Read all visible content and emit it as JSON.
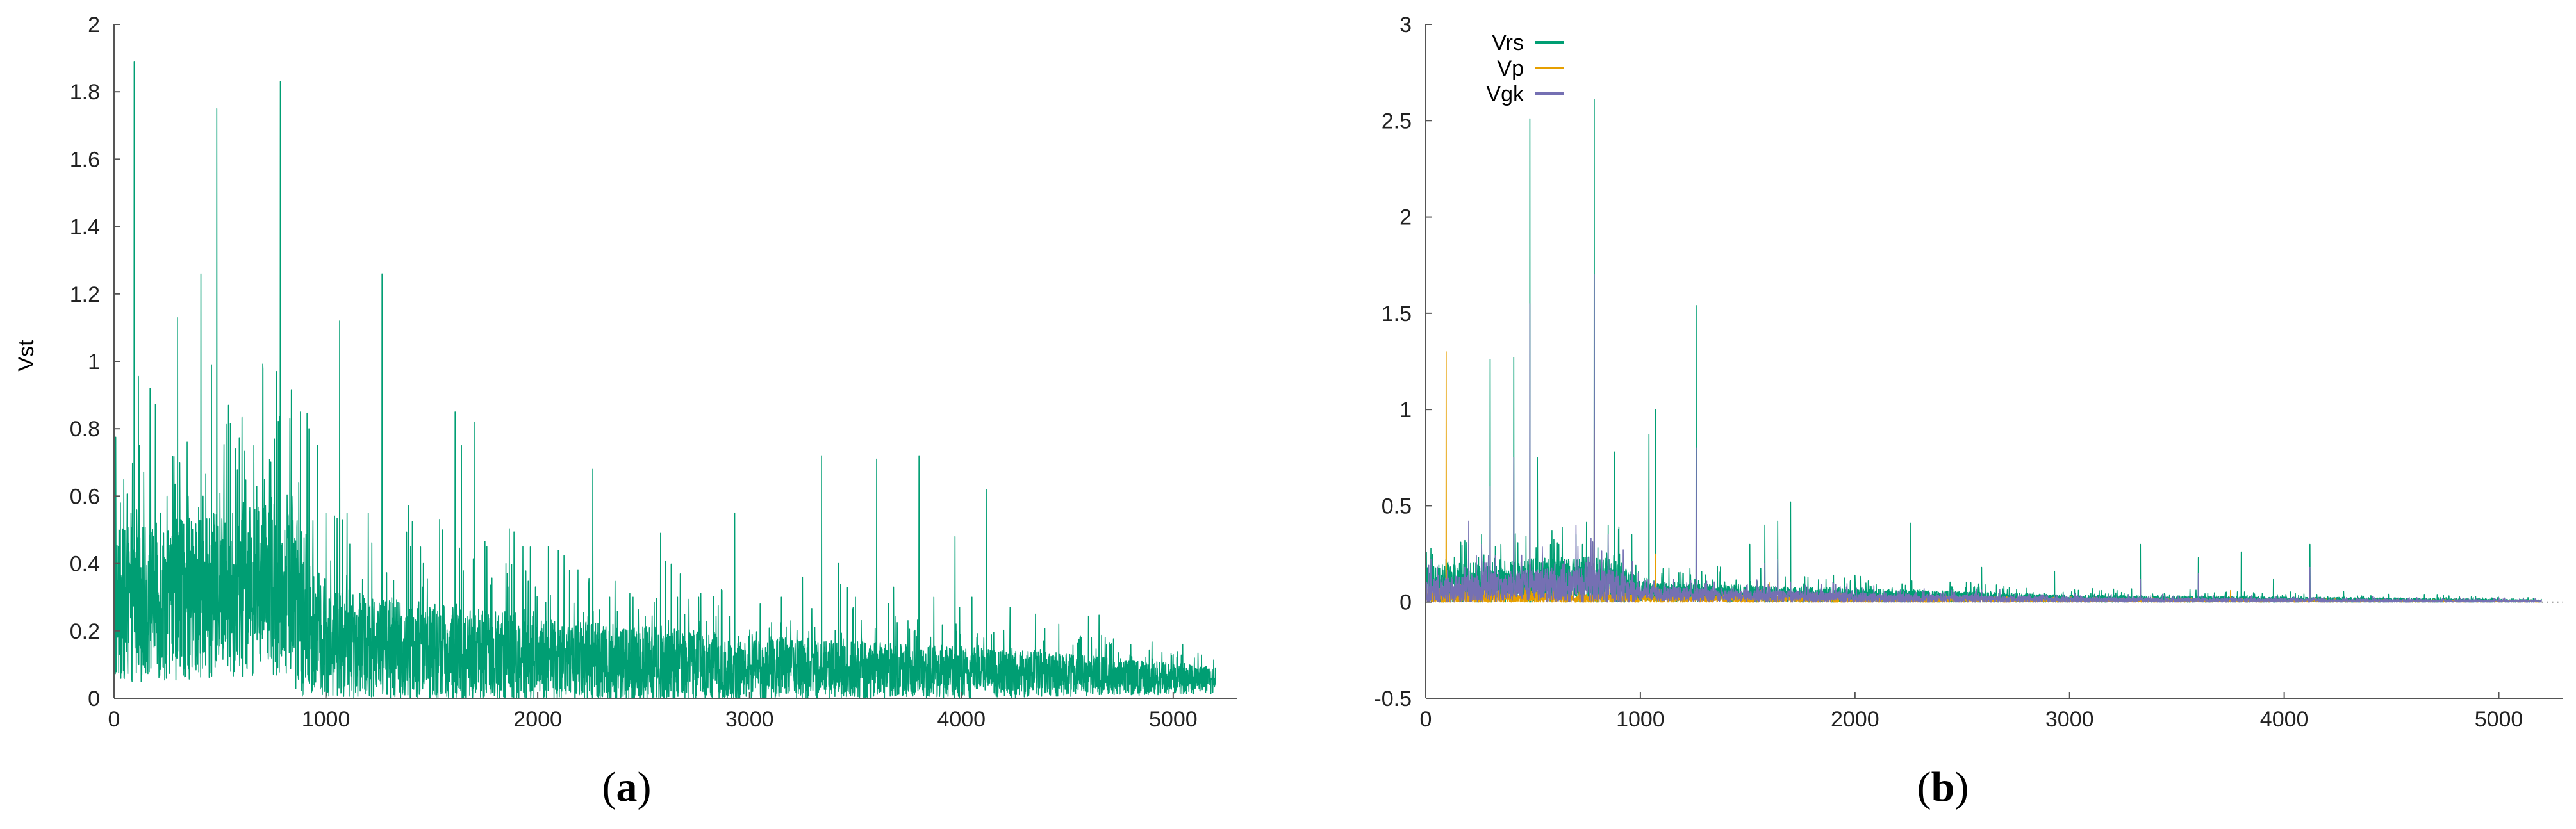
{
  "chart_data": [
    {
      "panel_label": "a",
      "type": "line",
      "ylabel": "Vst",
      "xlabel": "",
      "xlim": [
        0,
        5300
      ],
      "ylim": [
        0,
        2
      ],
      "xticks": [
        0,
        1000,
        2000,
        3000,
        4000,
        5000
      ],
      "yticks": [
        0,
        0.2,
        0.4,
        0.6,
        0.8,
        1,
        1.2,
        1.4,
        1.6,
        1.8,
        2
      ],
      "legend": null,
      "grid": false,
      "series": [
        {
          "color": "#009E73",
          "n_points": 5200,
          "baseline": [
            [
              0,
              0.25
            ],
            [
              500,
              0.28
            ],
            [
              800,
              0.3
            ],
            [
              1000,
              0.15
            ],
            [
              1500,
              0.12
            ],
            [
              2000,
              0.1
            ],
            [
              3000,
              0.08
            ],
            [
              4000,
              0.07
            ],
            [
              5200,
              0.05
            ]
          ],
          "spread": [
            [
              0,
              0.35
            ],
            [
              900,
              0.4
            ],
            [
              1000,
              0.25
            ],
            [
              2000,
              0.2
            ],
            [
              3000,
              0.15
            ],
            [
              4500,
              0.1
            ],
            [
              5200,
              0.06
            ]
          ],
          "peaks": [
            [
              30,
              0.58
            ],
            [
              80,
              0.55
            ],
            [
              120,
              0.75
            ],
            [
              170,
              0.55
            ],
            [
              220,
              0.55
            ],
            [
              250,
              0.6
            ],
            [
              300,
              0.65
            ],
            [
              310,
              0.7
            ],
            [
              350,
              0.6
            ],
            [
              420,
              0.6
            ],
            [
              470,
              0.55
            ],
            [
              560,
              0.55
            ],
            [
              610,
              0.5
            ],
            [
              660,
              0.75
            ],
            [
              710,
              0.65
            ],
            [
              740,
              0.7
            ],
            [
              840,
              0.6
            ],
            [
              880,
              0.85
            ],
            [
              920,
              0.8
            ],
            [
              960,
              0.75
            ],
            [
              1000,
              0.55
            ],
            [
              1100,
              0.55
            ],
            [
              1200,
              0.55
            ],
            [
              1320,
              0.35
            ],
            [
              1400,
              0.45
            ],
            [
              1460,
              0.4
            ],
            [
              1550,
              0.5
            ],
            [
              1610,
              0.85
            ],
            [
              1640,
              0.75
            ],
            [
              1700,
              0.82
            ],
            [
              1760,
              0.45
            ],
            [
              1850,
              0.4
            ],
            [
              1930,
              0.45
            ],
            [
              2050,
              0.45
            ],
            [
              2150,
              0.38
            ],
            [
              2260,
              0.68
            ],
            [
              2340,
              0.3
            ],
            [
              2450,
              0.3
            ],
            [
              2580,
              0.49
            ],
            [
              2660,
              0.3
            ],
            [
              2760,
              0.3
            ],
            [
              2870,
              0.32
            ],
            [
              2930,
              0.55
            ],
            [
              3050,
              0.28
            ],
            [
              3150,
              0.3
            ],
            [
              3250,
              0.36
            ],
            [
              3340,
              0.72
            ],
            [
              3420,
              0.4
            ],
            [
              3500,
              0.3
            ],
            [
              3600,
              0.71
            ],
            [
              3680,
              0.33
            ],
            [
              3800,
              0.72
            ],
            [
              3870,
              0.3
            ],
            [
              3970,
              0.48
            ],
            [
              4050,
              0.3
            ],
            [
              4120,
              0.62
            ],
            [
              4230,
              0.27
            ],
            [
              4350,
              0.25
            ],
            [
              4460,
              0.22
            ],
            [
              4560,
              0.18
            ],
            [
              4700,
              0.15
            ],
            [
              4800,
              0.16
            ],
            [
              4900,
              0.14
            ],
            [
              5000,
              0.13
            ],
            [
              5100,
              0.12
            ],
            [
              5200,
              0.11
            ]
          ],
          "spikes": [
            [
              95,
              1.89
            ],
            [
              170,
              0.92
            ],
            [
              300,
              1.13
            ],
            [
              410,
              1.26
            ],
            [
              460,
              0.99
            ],
            [
              485,
              1.75
            ],
            [
              540,
              0.87
            ],
            [
              785,
              1.83
            ],
            [
              830,
              0.83
            ],
            [
              1065,
              1.12
            ],
            [
              1265,
              1.26
            ]
          ]
        }
      ]
    },
    {
      "panel_label": "b",
      "type": "line",
      "ylabel": "",
      "xlabel": "",
      "xlim": [
        0,
        5300
      ],
      "ylim": [
        -0.5,
        3
      ],
      "xticks": [
        0,
        1000,
        2000,
        3000,
        4000,
        5000
      ],
      "yticks": [
        -0.5,
        0,
        0.5,
        1,
        1.5,
        2,
        2.5,
        3
      ],
      "legend": "top-left",
      "grid": false,
      "series": [
        {
          "name": "Vrs",
          "color": "#009E73",
          "n_points": 5200,
          "baseline": [
            [
              0,
              0.08
            ],
            [
              500,
              0.1
            ],
            [
              800,
              0.1
            ],
            [
              1000,
              0.05
            ],
            [
              1500,
              0.04
            ],
            [
              2000,
              0.03
            ],
            [
              3000,
              0.015
            ],
            [
              4000,
              0.01
            ],
            [
              5200,
              0.005
            ]
          ],
          "spread": [
            [
              0,
              0.15
            ],
            [
              900,
              0.2
            ],
            [
              1000,
              0.08
            ],
            [
              2000,
              0.06
            ],
            [
              3000,
              0.03
            ],
            [
              4500,
              0.02
            ],
            [
              5200,
              0.01
            ]
          ],
          "peaks": [
            [
              100,
              0.2
            ],
            [
              200,
              0.3
            ],
            [
              260,
              0.35
            ],
            [
              350,
              0.3
            ],
            [
              560,
              0.2
            ],
            [
              620,
              0.3
            ],
            [
              700,
              0.35
            ],
            [
              850,
              0.4
            ],
            [
              900,
              0.3
            ],
            [
              960,
              0.35
            ],
            [
              1100,
              0.15
            ],
            [
              1200,
              0.15
            ],
            [
              1510,
              0.3
            ],
            [
              1580,
              0.4
            ],
            [
              1640,
              0.42
            ],
            [
              1700,
              0.52
            ],
            [
              1900,
              0.14
            ],
            [
              2000,
              0.14
            ],
            [
              2540,
              0.1
            ],
            [
              2590,
              0.18
            ],
            [
              2930,
              0.16
            ],
            [
              3150,
              0.06
            ],
            [
              3330,
              0.3
            ],
            [
              3600,
              0.23
            ],
            [
              3800,
              0.26
            ],
            [
              3950,
              0.12
            ],
            [
              4120,
              0.3
            ]
          ],
          "spikes": [
            [
              300,
              1.26
            ],
            [
              410,
              1.27
            ],
            [
              485,
              2.51
            ],
            [
              520,
              0.75
            ],
            [
              785,
              2.61
            ],
            [
              880,
              0.78
            ],
            [
              1040,
              0.87
            ],
            [
              1070,
              1.0
            ],
            [
              1260,
              1.54
            ],
            [
              2260,
              0.41
            ]
          ]
        },
        {
          "name": "Vp",
          "color": "#E69F00",
          "n_points": 5200,
          "baseline": [
            [
              0,
              0.02
            ],
            [
              1000,
              0.015
            ],
            [
              2000,
              0.01
            ],
            [
              3000,
              0.006
            ],
            [
              5200,
              0.003
            ]
          ],
          "spread": [
            [
              0,
              0.05
            ],
            [
              1000,
              0.03
            ],
            [
              2000,
              0.02
            ],
            [
              3000,
              0.01
            ],
            [
              5200,
              0.005
            ]
          ],
          "peaks": [
            [
              1260,
              0.25
            ],
            [
              1600,
              0.1
            ],
            [
              3750,
              0.06
            ]
          ],
          "spikes": [
            [
              95,
              1.3
            ],
            [
              485,
              0.6
            ],
            [
              785,
              0.9
            ],
            [
              1070,
              0.25
            ]
          ]
        },
        {
          "name": "Vgk",
          "color": "#7570B3",
          "n_points": 5200,
          "baseline": [
            [
              0,
              0.05
            ],
            [
              500,
              0.08
            ],
            [
              800,
              0.08
            ],
            [
              1000,
              0.04
            ],
            [
              1500,
              0.03
            ],
            [
              2000,
              0.02
            ],
            [
              3000,
              0.01
            ],
            [
              5200,
              0.004
            ]
          ],
          "spread": [
            [
              0,
              0.1
            ],
            [
              900,
              0.15
            ],
            [
              1000,
              0.06
            ],
            [
              2000,
              0.04
            ],
            [
              3000,
              0.02
            ],
            [
              5200,
              0.008
            ]
          ],
          "peaks": [
            [
              200,
              0.42
            ],
            [
              260,
              0.3
            ],
            [
              700,
              0.4
            ],
            [
              850,
              0.35
            ],
            [
              1580,
              0.2
            ],
            [
              1640,
              0.22
            ],
            [
              3330,
              0.12
            ],
            [
              3600,
              0.15
            ],
            [
              4120,
              0.18
            ]
          ],
          "spikes": [
            [
              300,
              0.6
            ],
            [
              410,
              0.75
            ],
            [
              485,
              1.55
            ],
            [
              785,
              1.7
            ],
            [
              1260,
              0.8
            ]
          ]
        }
      ]
    }
  ]
}
